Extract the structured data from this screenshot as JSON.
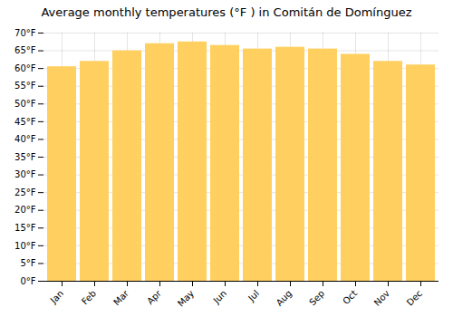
{
  "chart_data": {
    "type": "bar",
    "title": "Average monthly temperatures (°F ) in Comitán de Domínguez",
    "categories": [
      "Jan",
      "Feb",
      "Mar",
      "Apr",
      "May",
      "Jun",
      "Jul",
      "Aug",
      "Sep",
      "Oct",
      "Nov",
      "Dec"
    ],
    "values": [
      60.5,
      62.0,
      65.0,
      67.0,
      67.5,
      66.5,
      65.5,
      66.0,
      65.5,
      64.0,
      62.0,
      61.0
    ],
    "color": "#FFD060",
    "ylim": [
      0,
      70
    ],
    "yticks": [
      {
        "value": 0,
        "label": "0°F"
      },
      {
        "value": 5,
        "label": "5°F"
      },
      {
        "value": 10,
        "label": "10°F"
      },
      {
        "value": 15,
        "label": "15°F"
      },
      {
        "value": 20,
        "label": "20°F"
      },
      {
        "value": 25,
        "label": "25°F"
      },
      {
        "value": 30,
        "label": "30°F"
      },
      {
        "value": 35,
        "label": "35°F"
      },
      {
        "value": 40,
        "label": "40°F"
      },
      {
        "value": 45,
        "label": "45°F"
      },
      {
        "value": 50,
        "label": "50°F"
      },
      {
        "value": 55,
        "label": "55°F"
      },
      {
        "value": 60,
        "label": "60°F"
      },
      {
        "value": 65,
        "label": "65°F"
      },
      {
        "value": 70,
        "label": "70°F"
      }
    ],
    "grid": true
  }
}
